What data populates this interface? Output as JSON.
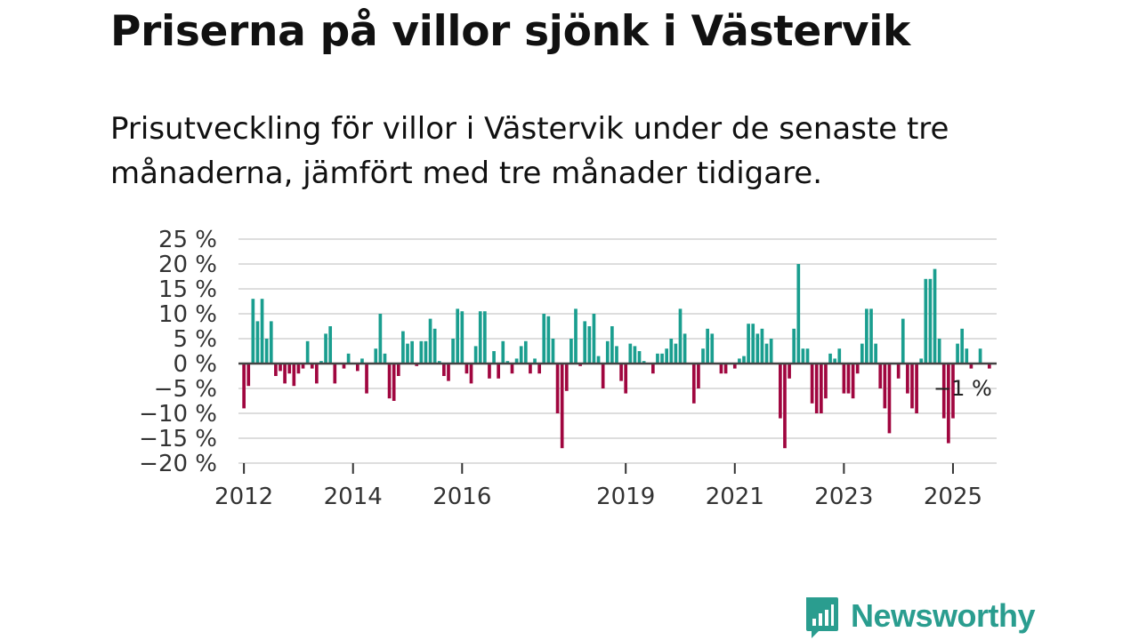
{
  "header": {
    "title": "Priserna på villor sjönk i Västervik",
    "subtitle": "Prisutveckling för villor i Västervik under de senaste tre månaderna, jämfört med tre månader tidigare."
  },
  "brand": {
    "name": "Newsworthy",
    "icon": "newsworthy-logo-icon"
  },
  "colors": {
    "positive": "#1a9e8f",
    "negative": "#a0063f",
    "grid": "#dddddd",
    "zero_line": "#444444",
    "brand": "#2a9d8f"
  },
  "chart_data": {
    "type": "bar",
    "title": "Priserna på villor sjönk i Västervik",
    "xlabel": "",
    "ylabel": "",
    "ylim": [
      -20,
      25
    ],
    "y_ticks": [
      25,
      20,
      15,
      10,
      5,
      0,
      -5,
      -10,
      -15,
      -20
    ],
    "y_tick_labels": [
      "25 %",
      "20 %",
      "15 %",
      "10 %",
      "5 %",
      "0 %",
      "−5 %",
      "−10 %",
      "−15 %",
      "−20 %"
    ],
    "x_start": 2011.9,
    "x_end": 2025.8,
    "x_ticks": [
      2012,
      2014,
      2016,
      2019,
      2021,
      2023,
      2025
    ],
    "x_tick_labels": [
      "2012",
      "2014",
      "2016",
      "2019",
      "2021",
      "2023",
      "2025"
    ],
    "bar_start_year": 2012.0,
    "bars_per_year": 12,
    "last_value_label": "−1 %",
    "values": [
      -9,
      -4.5,
      13,
      8.5,
      13,
      5,
      8.5,
      -2.5,
      -1.5,
      -4,
      -2,
      -4.5,
      -2,
      -1,
      4.5,
      -1,
      -4,
      0.5,
      6,
      7.5,
      -4,
      0,
      -1,
      2,
      0,
      -1.5,
      1,
      -6,
      0,
      3,
      10,
      2,
      -7,
      -7.5,
      -2.5,
      6.5,
      4,
      4.5,
      -0.5,
      4.5,
      4.5,
      9,
      7,
      0.5,
      -2.5,
      -3.5,
      5,
      11,
      10.5,
      -2,
      -4,
      3.5,
      10.5,
      10.5,
      -3,
      2.5,
      -3,
      4.5,
      0.5,
      -2,
      1,
      3.5,
      4.5,
      -2,
      1,
      -2,
      10,
      9.5,
      5,
      -10,
      -17,
      -5.5,
      5,
      11,
      -0.5,
      8.5,
      7.5,
      10,
      1.5,
      -5,
      4.5,
      7.5,
      3.5,
      -3.5,
      -6,
      4,
      3.5,
      2.5,
      0.5,
      0,
      -2,
      2,
      2,
      3,
      5,
      4,
      11,
      6,
      0,
      -8,
      -5,
      3,
      7,
      6,
      0,
      -2,
      -2,
      0,
      -1,
      1,
      1.5,
      8,
      8,
      6,
      7,
      4,
      5,
      0,
      -11,
      -17,
      -3,
      7,
      20,
      3,
      3,
      -8,
      -10,
      -10,
      -7,
      2,
      1,
      3,
      -6,
      -6,
      -7,
      -2,
      4,
      11,
      11,
      4,
      -5,
      -9,
      -14,
      0,
      -3,
      9,
      -6,
      -9,
      -10,
      1,
      17,
      17,
      19,
      5,
      -11,
      -16,
      -11,
      4,
      7,
      3,
      -1,
      0,
      3,
      0,
      -1
    ]
  }
}
